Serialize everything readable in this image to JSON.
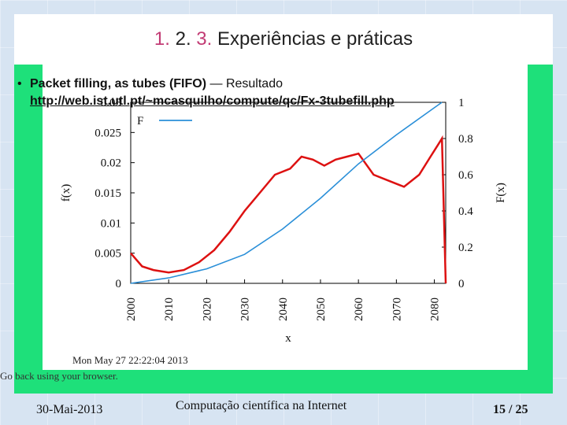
{
  "slide": {
    "title_num1": "1.",
    "title_num2": "2.",
    "title_num3": "3.",
    "title_text": "Experiências e práticas",
    "bullet_bold": "Packet filling, as tubes (FIFO)",
    "bullet_rest": " — Resultado",
    "link": "http://web.ist.utl.pt/~mcasquilho/compute/qc/Fx-3tubefill.php",
    "go_back": "Go back using your browser.",
    "footer_date": "30-Mai-2013",
    "footer_center": "Computação científica na Internet",
    "footer_page": "15 / 25"
  },
  "chart_data": {
    "type": "line",
    "xlabel": "x",
    "ylabel_left": "f(x)",
    "ylabel_right": "F(x)",
    "xlim": [
      2000,
      2083
    ],
    "ylim_left": [
      0,
      0.03
    ],
    "ylim_right": [
      0,
      1
    ],
    "x_ticks": [
      "2000",
      "2010",
      "2020",
      "2030",
      "2040",
      "2050",
      "2060",
      "2070",
      "2080"
    ],
    "y_left_ticks": [
      "0",
      "0.005",
      "0.01",
      "0.015",
      "0.02",
      "0.025",
      "0.03"
    ],
    "y_right_ticks": [
      "0",
      "0.2",
      "0.4",
      "0.6",
      "0.8",
      "1"
    ],
    "legend": [
      "F"
    ],
    "timestamp": "Mon May 27 22:22:04 2013",
    "colors": {
      "f": "#dd1111",
      "F": "#2a8fd8"
    },
    "series": [
      {
        "name": "",
        "axis": "left",
        "x": [
          2000,
          2003,
          2006,
          2010,
          2014,
          2018,
          2022,
          2026,
          2030,
          2034,
          2038,
          2042,
          2045,
          2048,
          2051,
          2054,
          2057,
          2060,
          2064,
          2068,
          2072,
          2076,
          2079,
          2081,
          2082,
          2083
        ],
        "y": [
          0.005,
          0.0028,
          0.0022,
          0.0018,
          0.0022,
          0.0035,
          0.0055,
          0.0085,
          0.012,
          0.015,
          0.018,
          0.019,
          0.021,
          0.0205,
          0.0195,
          0.0205,
          0.021,
          0.0215,
          0.018,
          0.017,
          0.016,
          0.018,
          0.021,
          0.023,
          0.024,
          0.0
        ]
      },
      {
        "name": "F",
        "axis": "right",
        "x": [
          2000,
          2010,
          2020,
          2030,
          2040,
          2050,
          2060,
          2070,
          2080,
          2082
        ],
        "y": [
          0,
          0.03,
          0.08,
          0.16,
          0.3,
          0.47,
          0.66,
          0.82,
          0.97,
          1.0
        ]
      }
    ]
  }
}
